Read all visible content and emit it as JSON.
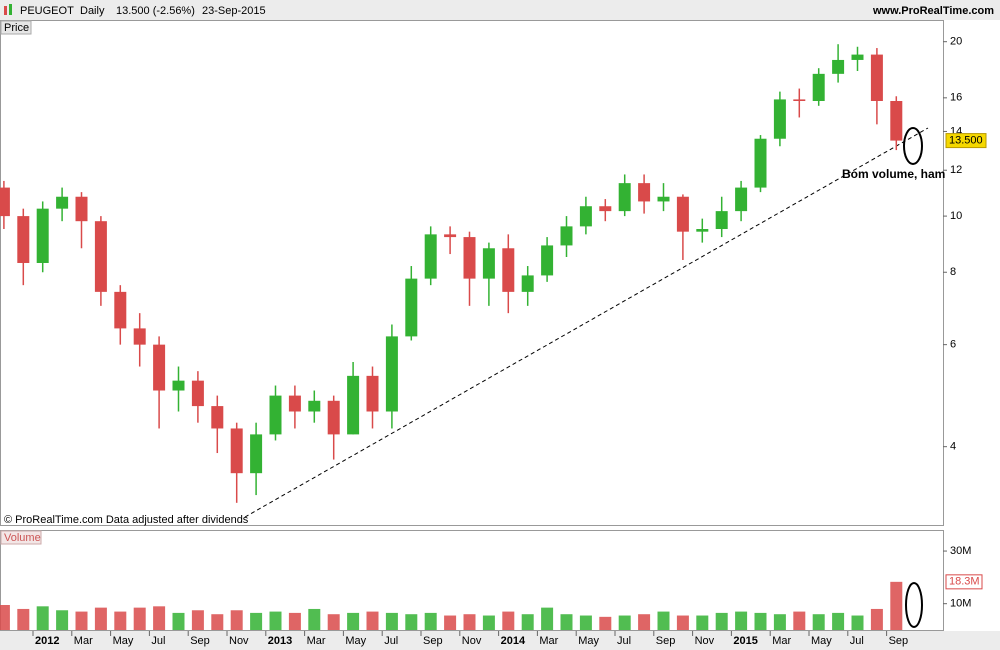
{
  "header": {
    "symbol": "PEUGEOT",
    "period": "Daily",
    "quote": "13.500 (-2.56%)",
    "date": "23-Sep-2015",
    "site": "www.ProRealTime.com"
  },
  "annotations": {
    "comment": "Bom volume, ham",
    "copyright": "© ProRealTime.com  Data adjusted after dividends"
  },
  "chart_data": [
    {
      "type": "candlestick",
      "title": "Price",
      "log_scale": true,
      "up_color": "#33b233",
      "down_color": "#d94a4a",
      "x": [
        "2011-11",
        "2011-12",
        "2012-01",
        "2012-02",
        "2012-03",
        "2012-04",
        "2012-05",
        "2012-06",
        "2012-07",
        "2012-08",
        "2012-09",
        "2012-10",
        "2012-11",
        "2012-12",
        "2013-01",
        "2013-02",
        "2013-03",
        "2013-04",
        "2013-05",
        "2013-06",
        "2013-07",
        "2013-08",
        "2013-09",
        "2013-10",
        "2013-11",
        "2013-12",
        "2014-01",
        "2014-02",
        "2014-03",
        "2014-04",
        "2014-05",
        "2014-06",
        "2014-07",
        "2014-08",
        "2014-09",
        "2014-10",
        "2014-11",
        "2014-12",
        "2015-01",
        "2015-02",
        "2015-03",
        "2015-04",
        "2015-05",
        "2015-06",
        "2015-07",
        "2015-08",
        "2015-09"
      ],
      "open": [
        11.2,
        10.0,
        8.3,
        10.3,
        10.8,
        9.8,
        7.4,
        6.4,
        6.0,
        5.0,
        5.2,
        4.7,
        4.3,
        3.6,
        4.2,
        4.9,
        4.6,
        4.8,
        4.2,
        5.3,
        4.6,
        6.2,
        7.8,
        9.3,
        9.2,
        7.8,
        8.8,
        7.4,
        7.9,
        8.9,
        9.6,
        10.4,
        10.2,
        11.4,
        10.6,
        10.8,
        9.4,
        9.5,
        10.2,
        11.2,
        13.6,
        15.9,
        15.8,
        17.6,
        18.6,
        19.0,
        15.8
      ],
      "high": [
        11.5,
        10.3,
        10.6,
        11.2,
        11.0,
        10.0,
        7.6,
        6.8,
        6.2,
        5.5,
        5.4,
        4.9,
        4.4,
        4.4,
        5.1,
        5.1,
        5.0,
        4.9,
        5.6,
        5.5,
        6.5,
        8.2,
        9.6,
        9.6,
        9.4,
        9.0,
        9.3,
        8.2,
        9.2,
        10.0,
        10.8,
        10.7,
        11.8,
        11.8,
        11.4,
        10.9,
        9.9,
        10.8,
        11.5,
        13.8,
        16.4,
        16.6,
        18.0,
        19.8,
        19.6,
        19.5,
        16.1
      ],
      "low": [
        9.5,
        7.6,
        8.0,
        9.8,
        8.8,
        7.0,
        6.0,
        5.5,
        4.3,
        4.6,
        4.4,
        3.9,
        3.2,
        3.3,
        4.1,
        4.3,
        4.4,
        3.8,
        4.2,
        4.3,
        4.3,
        6.1,
        7.6,
        8.6,
        7.0,
        7.0,
        6.8,
        7.0,
        7.7,
        8.5,
        9.3,
        9.8,
        10.0,
        10.1,
        10.2,
        8.4,
        9.0,
        9.2,
        9.8,
        11.0,
        13.2,
        14.8,
        15.5,
        17.0,
        17.8,
        14.4,
        13.0
      ],
      "close": [
        10.0,
        8.3,
        10.3,
        10.8,
        9.8,
        7.4,
        6.4,
        6.0,
        5.0,
        5.2,
        4.7,
        4.3,
        3.6,
        4.2,
        4.9,
        4.6,
        4.8,
        4.2,
        5.3,
        4.6,
        6.2,
        7.8,
        9.3,
        9.2,
        7.8,
        8.8,
        7.4,
        7.9,
        8.9,
        9.6,
        10.4,
        10.2,
        11.4,
        10.6,
        10.8,
        9.4,
        9.5,
        10.2,
        11.2,
        13.6,
        15.9,
        15.8,
        17.6,
        18.6,
        19.0,
        15.8,
        13.5
      ],
      "last_label": "13.500",
      "ylim": [
        2.93,
        21.8
      ],
      "yticks": [
        4,
        6,
        8,
        10,
        12,
        14,
        16,
        20
      ],
      "xticks": [
        {
          "value": "2012-01",
          "label": "2012"
        },
        {
          "value": "2012-03",
          "label": "Mar"
        },
        {
          "value": "2012-05",
          "label": "May"
        },
        {
          "value": "2012-07",
          "label": "Jul"
        },
        {
          "value": "2012-09",
          "label": "Sep"
        },
        {
          "value": "2012-11",
          "label": "Nov"
        },
        {
          "value": "2013-01",
          "label": "2013"
        },
        {
          "value": "2013-03",
          "label": "Mar"
        },
        {
          "value": "2013-05",
          "label": "May"
        },
        {
          "value": "2013-07",
          "label": "Jul"
        },
        {
          "value": "2013-09",
          "label": "Sep"
        },
        {
          "value": "2013-11",
          "label": "Nov"
        },
        {
          "value": "2014-01",
          "label": "2014"
        },
        {
          "value": "2014-03",
          "label": "Mar"
        },
        {
          "value": "2014-05",
          "label": "May"
        },
        {
          "value": "2014-07",
          "label": "Jul"
        },
        {
          "value": "2014-09",
          "label": "Sep"
        },
        {
          "value": "2014-11",
          "label": "Nov"
        },
        {
          "value": "2015-01",
          "label": "2015"
        },
        {
          "value": "2015-03",
          "label": "Mar"
        },
        {
          "value": "2015-05",
          "label": "May"
        },
        {
          "value": "2015-07",
          "label": "Jul"
        },
        {
          "value": "2015-09",
          "label": "Sep"
        }
      ]
    },
    {
      "type": "bar",
      "title": "Volume",
      "values": [
        9500000,
        8000000,
        9000000,
        7500000,
        7000000,
        8500000,
        7000000,
        8500000,
        9000000,
        6500000,
        7500000,
        6000000,
        7500000,
        6500000,
        7000000,
        6500000,
        8000000,
        6000000,
        6500000,
        7000000,
        6500000,
        6000000,
        6500000,
        5500000,
        6000000,
        5500000,
        7000000,
        6000000,
        8500000,
        6000000,
        5500000,
        5000000,
        5500000,
        6000000,
        7000000,
        5500000,
        5500000,
        6500000,
        7000000,
        6500000,
        6000000,
        7000000,
        6000000,
        6500000,
        5500000,
        8000000,
        18300000
      ],
      "last_label": "18.3M",
      "ylim": [
        0,
        38000000
      ],
      "yticks": [
        {
          "value": 10000000,
          "label": "10M"
        },
        {
          "value": 30000000,
          "label": "30M"
        }
      ]
    }
  ]
}
